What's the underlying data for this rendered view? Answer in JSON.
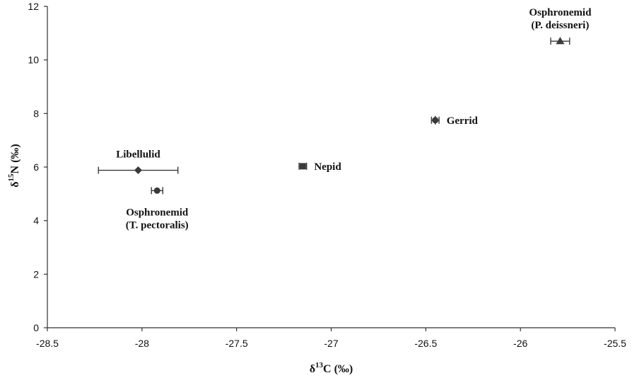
{
  "chart_data": {
    "type": "scatter",
    "xlabel": {
      "prefix": "δ",
      "sup": "13",
      "suffix": "C (‰)"
    },
    "ylabel": {
      "prefix": "δ",
      "sup": "15",
      "suffix": "N (‰)"
    },
    "xlim": [
      -28.5,
      -25.5
    ],
    "ylim": [
      0,
      12
    ],
    "xticks": [
      -28.5,
      -28,
      -27.5,
      -27,
      -26.5,
      -26,
      -25.5
    ],
    "xtick_labels": [
      "-28.5",
      "-28",
      "-27.5",
      "-27",
      "-26.5",
      "-26",
      "-25.5"
    ],
    "yticks": [
      0,
      2,
      4,
      6,
      8,
      10,
      12
    ],
    "ytick_labels": [
      "0",
      "2",
      "4",
      "6",
      "8",
      "10",
      "12"
    ],
    "grid": false,
    "points": [
      {
        "label_lines": [
          "Libellulid"
        ],
        "x": -28.02,
        "y": 5.88,
        "x_err": 0.21,
        "y_err": 0,
        "marker": "diamond",
        "label_position": "above"
      },
      {
        "label_lines": [
          "Osphronemid",
          "(T. pectoralis)"
        ],
        "x": -27.92,
        "y": 5.12,
        "x_err": 0.03,
        "y_err": 0,
        "marker": "circle",
        "label_position": "below"
      },
      {
        "label_lines": [
          "Nepid"
        ],
        "x": -27.15,
        "y": 6.03,
        "x_err": 0.02,
        "y_err": 0,
        "marker": "square",
        "label_position": "right"
      },
      {
        "label_lines": [
          "Gerrid"
        ],
        "x": -26.45,
        "y": 7.75,
        "x_err": 0.02,
        "y_err": 0,
        "marker": "cross",
        "label_position": "right"
      },
      {
        "label_lines": [
          "Osphronemid",
          "(P. deissneri)"
        ],
        "x": -25.79,
        "y": 10.7,
        "x_err": 0.05,
        "y_err": 0,
        "marker": "triangle",
        "label_position": "above"
      }
    ],
    "colors": {
      "marker": "#3a3a3a",
      "axis": "#333333",
      "text": "#111111"
    }
  }
}
